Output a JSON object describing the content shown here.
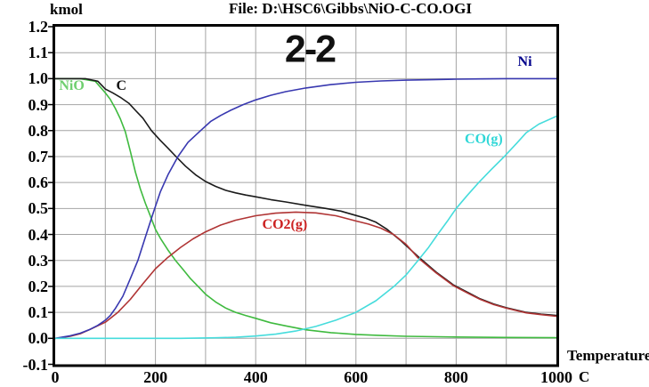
{
  "header": {
    "y_unit": "kmol",
    "file_title": "File: D:\\HSC6\\Gibbs\\NiO-C-CO.OGI"
  },
  "annotation": {
    "text": "2-2"
  },
  "axes": {
    "x_label": "Temperature",
    "x_unit": "C",
    "x_tick_labels": [
      "0",
      "200",
      "400",
      "600",
      "800",
      "1000"
    ],
    "y_tick_labels": [
      "1.2",
      "1.1",
      "1.0",
      "0.9",
      "0.8",
      "0.7",
      "0.6",
      "0.5",
      "0.4",
      "0.3",
      "0.2",
      "0.1",
      "0.0",
      "-0.1"
    ]
  },
  "chart_data": {
    "type": "line",
    "title": "File: D:\\HSC6\\Gibbs\\NiO-C-CO.OGI",
    "xlabel": "Temperature C",
    "ylabel": "kmol",
    "xlim": [
      0,
      1000
    ],
    "ylim": [
      -0.1,
      1.2
    ],
    "x_gridline_step": 100,
    "y_gridline_step": 0.1,
    "grid": true,
    "legend_position": "inline-labels",
    "colors": {
      "grid": "#a4a4a4",
      "border": "#000000",
      "background": "#ffffff"
    },
    "series": [
      {
        "name": "NiO",
        "label": "NiO",
        "color": "#3fba3f",
        "label_color": "#6fcf6f",
        "label_pos": {
          "t": 33,
          "v": 0.972
        },
        "points": [
          [
            0,
            1.0
          ],
          [
            50,
            1.0
          ],
          [
            80,
            0.99
          ],
          [
            100,
            0.945
          ],
          [
            110,
            0.92
          ],
          [
            120,
            0.885
          ],
          [
            130,
            0.845
          ],
          [
            140,
            0.795
          ],
          [
            150,
            0.72
          ],
          [
            160,
            0.64
          ],
          [
            170,
            0.575
          ],
          [
            180,
            0.52
          ],
          [
            190,
            0.47
          ],
          [
            200,
            0.42
          ],
          [
            210,
            0.385
          ],
          [
            225,
            0.34
          ],
          [
            240,
            0.3
          ],
          [
            255,
            0.265
          ],
          [
            270,
            0.23
          ],
          [
            285,
            0.2
          ],
          [
            300,
            0.17
          ],
          [
            320,
            0.14
          ],
          [
            340,
            0.117
          ],
          [
            360,
            0.1
          ],
          [
            380,
            0.088
          ],
          [
            400,
            0.077
          ],
          [
            430,
            0.06
          ],
          [
            460,
            0.048
          ],
          [
            500,
            0.033
          ],
          [
            550,
            0.022
          ],
          [
            600,
            0.015
          ],
          [
            650,
            0.011
          ],
          [
            700,
            0.008
          ],
          [
            800,
            0.005
          ],
          [
            900,
            0.0035
          ],
          [
            1000,
            0.0025
          ]
        ]
      },
      {
        "name": "C",
        "label": "C",
        "color": "#1a1a1a",
        "label_color": "#111111",
        "label_pos": {
          "t": 132,
          "v": 0.97
        },
        "points": [
          [
            0,
            1.0
          ],
          [
            60,
            1.0
          ],
          [
            85,
            0.99
          ],
          [
            100,
            0.96
          ],
          [
            115,
            0.945
          ],
          [
            130,
            0.928
          ],
          [
            147,
            0.905
          ],
          [
            160,
            0.878
          ],
          [
            175,
            0.848
          ],
          [
            192,
            0.8
          ],
          [
            210,
            0.762
          ],
          [
            225,
            0.732
          ],
          [
            241,
            0.7
          ],
          [
            260,
            0.663
          ],
          [
            280,
            0.63
          ],
          [
            300,
            0.604
          ],
          [
            320,
            0.585
          ],
          [
            340,
            0.57
          ],
          [
            360,
            0.56
          ],
          [
            380,
            0.552
          ],
          [
            400,
            0.545
          ],
          [
            430,
            0.534
          ],
          [
            460,
            0.525
          ],
          [
            500,
            0.512
          ],
          [
            540,
            0.5
          ],
          [
            570,
            0.49
          ],
          [
            600,
            0.473
          ],
          [
            620,
            0.462
          ],
          [
            640,
            0.447
          ],
          [
            662,
            0.42
          ],
          [
            690,
            0.375
          ],
          [
            724,
            0.315
          ],
          [
            760,
            0.255
          ],
          [
            795,
            0.205
          ],
          [
            825,
            0.175
          ],
          [
            848,
            0.152
          ],
          [
            875,
            0.132
          ],
          [
            900,
            0.118
          ],
          [
            940,
            0.1
          ],
          [
            970,
            0.093
          ],
          [
            1000,
            0.088
          ]
        ]
      },
      {
        "name": "CO2(g)",
        "label": "CO2(g)",
        "color": "#b03434",
        "label_color": "#cc2222",
        "label_pos": {
          "t": 458,
          "v": 0.436
        },
        "points": [
          [
            0,
            0.0
          ],
          [
            30,
            0.008
          ],
          [
            50,
            0.018
          ],
          [
            70,
            0.035
          ],
          [
            100,
            0.062
          ],
          [
            125,
            0.1
          ],
          [
            150,
            0.15
          ],
          [
            175,
            0.21
          ],
          [
            200,
            0.268
          ],
          [
            225,
            0.312
          ],
          [
            250,
            0.35
          ],
          [
            275,
            0.383
          ],
          [
            300,
            0.41
          ],
          [
            330,
            0.436
          ],
          [
            360,
            0.455
          ],
          [
            400,
            0.472
          ],
          [
            440,
            0.482
          ],
          [
            480,
            0.486
          ],
          [
            520,
            0.483
          ],
          [
            560,
            0.472
          ],
          [
            600,
            0.452
          ],
          [
            625,
            0.44
          ],
          [
            650,
            0.424
          ],
          [
            675,
            0.4
          ],
          [
            700,
            0.362
          ],
          [
            724,
            0.31
          ],
          [
            760,
            0.252
          ],
          [
            795,
            0.202
          ],
          [
            825,
            0.172
          ],
          [
            848,
            0.15
          ],
          [
            875,
            0.13
          ],
          [
            900,
            0.116
          ],
          [
            940,
            0.098
          ],
          [
            970,
            0.091
          ],
          [
            1000,
            0.085
          ]
        ]
      },
      {
        "name": "Ni",
        "label": "Ni",
        "color": "#3838b0",
        "label_color": "#00008b",
        "label_pos": {
          "t": 937,
          "v": 1.063
        },
        "points": [
          [
            0,
            0.0
          ],
          [
            30,
            0.01
          ],
          [
            50,
            0.02
          ],
          [
            70,
            0.035
          ],
          [
            85,
            0.05
          ],
          [
            100,
            0.07
          ],
          [
            110,
            0.088
          ],
          [
            120,
            0.115
          ],
          [
            135,
            0.162
          ],
          [
            150,
            0.23
          ],
          [
            165,
            0.3
          ],
          [
            180,
            0.39
          ],
          [
            195,
            0.48
          ],
          [
            210,
            0.565
          ],
          [
            225,
            0.63
          ],
          [
            245,
            0.7
          ],
          [
            265,
            0.755
          ],
          [
            290,
            0.8
          ],
          [
            310,
            0.835
          ],
          [
            330,
            0.858
          ],
          [
            350,
            0.878
          ],
          [
            375,
            0.9
          ],
          [
            400,
            0.918
          ],
          [
            430,
            0.936
          ],
          [
            460,
            0.95
          ],
          [
            500,
            0.964
          ],
          [
            550,
            0.977
          ],
          [
            600,
            0.986
          ],
          [
            650,
            0.991
          ],
          [
            700,
            0.994
          ],
          [
            750,
            0.996
          ],
          [
            800,
            0.998
          ],
          [
            850,
            0.999
          ],
          [
            900,
            1.0
          ],
          [
            1000,
            1.0
          ]
        ]
      },
      {
        "name": "CO(g)",
        "label": "CO(g)",
        "color": "#46dcdc",
        "label_color": "#2fd7d7",
        "label_pos": {
          "t": 855,
          "v": 0.765
        },
        "points": [
          [
            0,
            0.0
          ],
          [
            150,
            0.0
          ],
          [
            250,
            0.0
          ],
          [
            320,
            0.002
          ],
          [
            360,
            0.004
          ],
          [
            400,
            0.009
          ],
          [
            440,
            0.016
          ],
          [
            480,
            0.028
          ],
          [
            520,
            0.046
          ],
          [
            560,
            0.07
          ],
          [
            600,
            0.1
          ],
          [
            640,
            0.145
          ],
          [
            676,
            0.2
          ],
          [
            700,
            0.244
          ],
          [
            724,
            0.3
          ],
          [
            745,
            0.35
          ],
          [
            763,
            0.4
          ],
          [
            782,
            0.45
          ],
          [
            800,
            0.5
          ],
          [
            822,
            0.55
          ],
          [
            845,
            0.6
          ],
          [
            870,
            0.65
          ],
          [
            896,
            0.7
          ],
          [
            920,
            0.75
          ],
          [
            940,
            0.792
          ],
          [
            965,
            0.825
          ],
          [
            1000,
            0.855
          ]
        ]
      }
    ]
  }
}
